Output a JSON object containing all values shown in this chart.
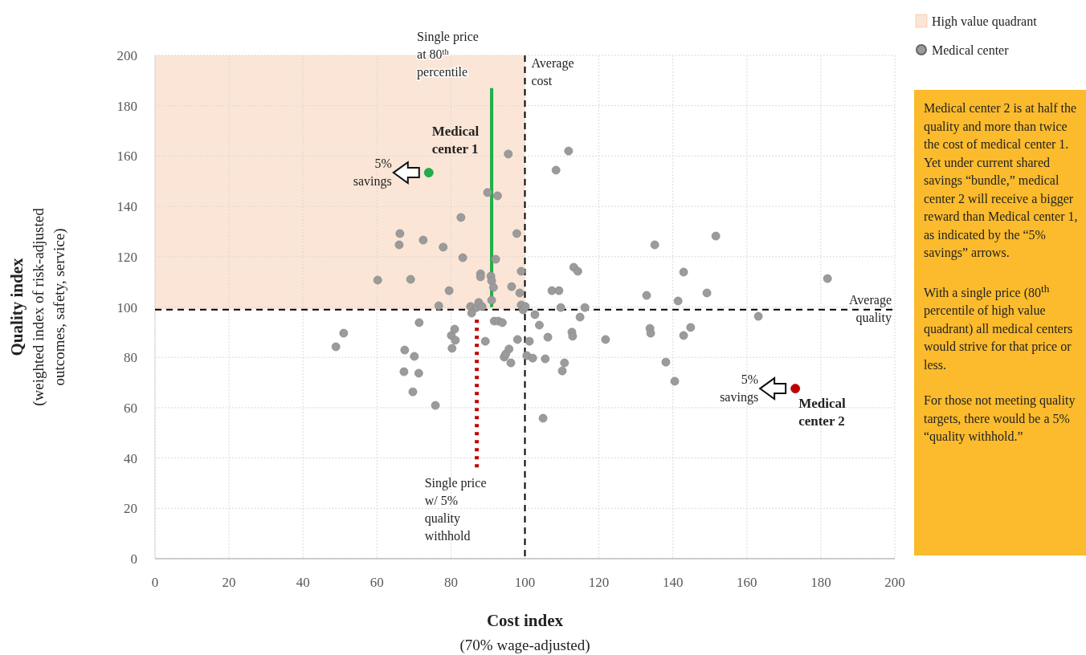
{
  "chart_data": {
    "type": "scatter",
    "xlabel": "Cost index (70% wage-adjusted)",
    "ylabel": "Quality index (weighted index of risk-adjusted outcomes, safety, service)",
    "xlim": [
      0,
      200
    ],
    "xticks": [
      0,
      20,
      40,
      60,
      80,
      100,
      120,
      140,
      160,
      180,
      200
    ],
    "ylim": [
      0,
      200
    ],
    "yticks": [
      0,
      20,
      40,
      60,
      80,
      100,
      120,
      140,
      160,
      180,
      200
    ],
    "grid": true,
    "legend": "top right",
    "marker": "circle",
    "series": [
      {
        "name": "Medical center",
        "color": "#9b9b9b",
        "x": [
          48.9,
          51,
          60.2,
          66,
          66.2,
          67.3,
          67.5,
          69.1,
          69.7,
          70.1,
          71.3,
          71.4,
          72.5,
          75.8,
          76.7,
          77.9,
          79.5,
          80.1,
          80.3,
          81,
          81.2,
          82.7,
          83.2,
          85.3,
          85.6,
          86.9,
          87.5,
          88,
          88,
          88.4,
          89.3,
          89.9,
          90.8,
          91,
          91,
          91.5,
          91.7,
          92.1,
          92.6,
          92.8,
          93.9,
          94.4,
          94.8,
          95.5,
          95.7,
          96.2,
          96.4,
          97.8,
          98,
          99,
          98.6,
          99,
          99.5,
          100.1,
          100.5,
          101.2,
          102.1,
          102.7,
          103.9,
          104.9,
          105.5,
          106.2,
          107.3,
          108.4,
          109.2,
          109.7,
          110.1,
          110.7,
          111.8,
          112.7,
          112.9,
          113.2,
          114.3,
          114.9,
          116.2,
          121.8,
          132.9,
          133.8,
          134,
          135.1,
          138.1,
          140.5,
          141.4,
          142.9,
          142.9,
          144.8,
          149.2,
          151.6,
          163.1,
          181.8
        ],
        "values": [
          84.2,
          89.6,
          110.7,
          124.7,
          129.2,
          74.3,
          82.9,
          111,
          66.3,
          80.4,
          73.7,
          93.8,
          126.6,
          60.9,
          100.5,
          123.8,
          106.5,
          88.7,
          83.6,
          91.2,
          86.8,
          135.6,
          119.6,
          100.2,
          97.6,
          99.8,
          101.8,
          113.2,
          112,
          100.2,
          86.4,
          145.5,
          112.3,
          110.4,
          102.7,
          107.8,
          94.4,
          119,
          144.2,
          94.4,
          93.8,
          80.1,
          81.3,
          160.8,
          83.3,
          77.8,
          108.1,
          129.2,
          87.1,
          114.2,
          105.6,
          100.8,
          98.9,
          100.2,
          80.7,
          86.4,
          79.7,
          97,
          92.8,
          55.8,
          79.4,
          88,
          106.5,
          154.4,
          106.5,
          99.8,
          74.6,
          77.8,
          162,
          90,
          88.4,
          115.8,
          114.2,
          96,
          99.8,
          87.1,
          104.6,
          91.5,
          89.6,
          124.7,
          78.1,
          70.5,
          102.4,
          113.9,
          88.7,
          91.9,
          105.6,
          128.2,
          96.3,
          111.3
        ]
      },
      {
        "name": "Medical center 1",
        "type": "scatter",
        "color": "#1fae4b",
        "x": [
          74
        ],
        "values": [
          153.4
        ]
      },
      {
        "name": "Medical center 2",
        "type": "scatter",
        "color": "#c00000",
        "x": [
          173.1
        ],
        "values": [
          67.6
        ]
      },
      {
        "type": "line",
        "marker": "none",
        "color": "#1fae4b",
        "line_style": "solid",
        "x": [
          91,
          91
        ],
        "values": [
          100,
          187
        ]
      },
      {
        "type": "line",
        "marker": "none",
        "color": "#c00000",
        "line_style": "dotted",
        "x": [
          87,
          87
        ],
        "values": [
          95,
          36
        ]
      }
    ],
    "ref_lines": [
      {
        "axis": "x",
        "value": 100,
        "label": "Average cost",
        "line_style": "dashed",
        "color": "#000000"
      },
      {
        "axis": "y",
        "value": 99,
        "label": "Average quality",
        "line_style": "dashed",
        "color": "#000000"
      }
    ],
    "bands": [
      {
        "axis": "y",
        "from": 99,
        "to": 200,
        "label": "High value quadrant",
        "color": "#fbe5d6"
      }
    ],
    "annotations": [
      {
        "text": "Single price at 80$^{th}$ percentile",
        "x": 91,
        "y": 187
      },
      {
        "text": "Single price w/ 5% quality withhold",
        "x": 87,
        "y": 36
      },
      {
        "text": "5% savings",
        "x": 74,
        "y": 153.4
      },
      {
        "text": "5% savings",
        "x": 173.1,
        "y": 67.6
      },
      "Medical center 2 is at half the quality and more than twice the cost of medical center 1.  Yet under current shared savings “bundle,” medical center 2 will receive a bigger reward than Medical center 1, as indicated by the “5% savings” arrows.",
      "With a single price (80$^{th}$ percentile of high value quadrant) all medical centers would strive for that price or less.",
      "For those not meeting quality targets, there would be a 5% “quality withhold.”"
    ]
  }
}
